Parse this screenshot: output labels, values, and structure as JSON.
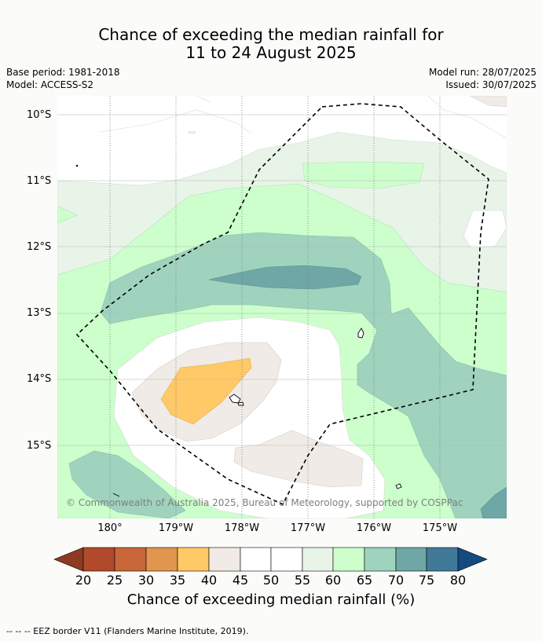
{
  "title": {
    "line1": "Chance of exceeding the median rainfall for",
    "line2": "11 to 24 August 2025"
  },
  "meta": {
    "base_period": "Base period: 1981-2018",
    "model": "Model: ACCESS-S2",
    "model_run": "Model run: 28/07/2025",
    "issued": "Issued: 30/07/2025"
  },
  "map": {
    "lat_labels": [
      "10°S",
      "11°S",
      "12°S",
      "13°S",
      "14°S",
      "15°S"
    ],
    "lon_labels": [
      "180°",
      "179°W",
      "178°W",
      "177°W",
      "176°W",
      "175°W"
    ],
    "copyright": "© Commonwealth of Australia 2025, Bureau of Meteorology, supported by COSPPac",
    "eez_layer": "EEZ border",
    "land_layer": "islands"
  },
  "colorbar": {
    "ticks": [
      "20",
      "25",
      "30",
      "35",
      "40",
      "45",
      "50",
      "55",
      "60",
      "65",
      "70",
      "75",
      "80"
    ],
    "colors": [
      "#8e3a22",
      "#b04a2a",
      "#c9663a",
      "#e0964e",
      "#fec966",
      "#f0ebe6",
      "#ffffff",
      "#ffffff",
      "#e8f4e8",
      "#ccffcc",
      "#9fd3bd",
      "#6fa6a6",
      "#417a98",
      "#154a7e"
    ],
    "label": "Chance of exceeding median rainfall (%)"
  },
  "footer": "--  --  -- EEZ border V11 (Flanders Marine Institute, 2019)."
}
